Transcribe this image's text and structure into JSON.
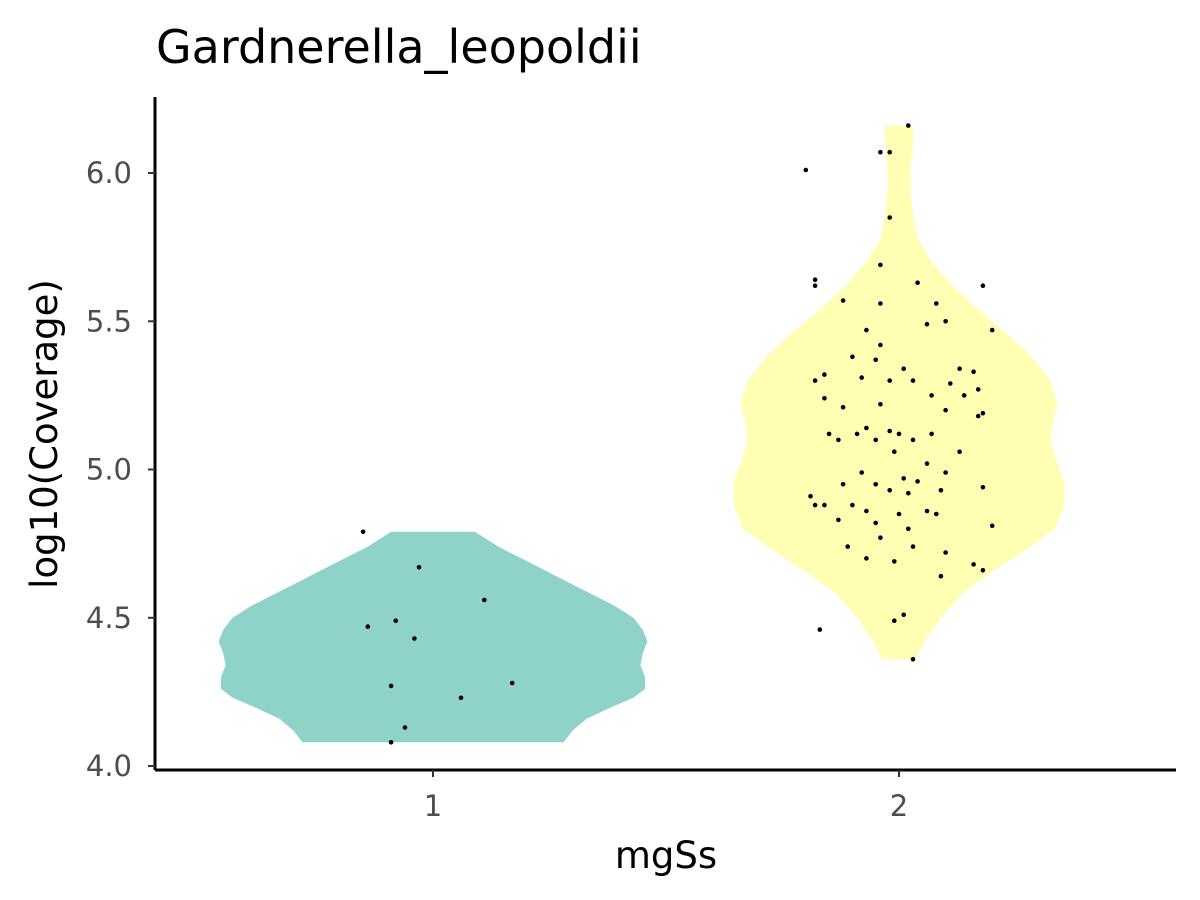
{
  "chart_data": {
    "type": "violin",
    "title": "Gardnerella_leopoldii",
    "xlabel": "mgSs",
    "ylabel": "log10(Coverage)",
    "categories": [
      "1",
      "2"
    ],
    "ylim": [
      3.99,
      6.25
    ],
    "y_ticks": [
      "4.0",
      "4.5",
      "5.0",
      "5.5",
      "6.0"
    ],
    "y_tick_values": [
      4.0,
      4.5,
      5.0,
      5.5,
      6.0
    ],
    "grid": false,
    "legend": "none",
    "series": [
      {
        "group": "1",
        "color": "#8fd3c8",
        "density": [
          [
            4.08,
            0.56
          ],
          [
            4.12,
            0.6
          ],
          [
            4.16,
            0.66
          ],
          [
            4.2,
            0.77
          ],
          [
            4.23,
            0.86
          ],
          [
            4.26,
            0.91
          ],
          [
            4.3,
            0.91
          ],
          [
            4.34,
            0.89
          ],
          [
            4.38,
            0.9
          ],
          [
            4.42,
            0.92
          ],
          [
            4.46,
            0.9
          ],
          [
            4.5,
            0.86
          ],
          [
            4.54,
            0.78
          ],
          [
            4.58,
            0.68
          ],
          [
            4.62,
            0.58
          ],
          [
            4.66,
            0.48
          ],
          [
            4.7,
            0.38
          ],
          [
            4.74,
            0.28
          ],
          [
            4.78,
            0.2
          ],
          [
            4.79,
            0.18
          ]
        ],
        "points": [
          [
            0.85,
            4.79
          ],
          [
            0.97,
            4.67
          ],
          [
            1.11,
            4.56
          ],
          [
            0.86,
            4.47
          ],
          [
            0.92,
            4.49
          ],
          [
            0.96,
            4.43
          ],
          [
            0.91,
            4.27
          ],
          [
            1.17,
            4.28
          ],
          [
            1.06,
            4.23
          ],
          [
            0.94,
            4.13
          ],
          [
            0.91,
            4.08
          ]
        ]
      },
      {
        "group": "2",
        "color": "#ffffb3",
        "density": [
          [
            4.36,
            0.07
          ],
          [
            4.42,
            0.11
          ],
          [
            4.5,
            0.18
          ],
          [
            4.58,
            0.27
          ],
          [
            4.65,
            0.39
          ],
          [
            4.72,
            0.53
          ],
          [
            4.8,
            0.67
          ],
          [
            4.88,
            0.71
          ],
          [
            4.96,
            0.71
          ],
          [
            5.04,
            0.67
          ],
          [
            5.1,
            0.65
          ],
          [
            5.16,
            0.66
          ],
          [
            5.22,
            0.68
          ],
          [
            5.3,
            0.65
          ],
          [
            5.38,
            0.57
          ],
          [
            5.46,
            0.46
          ],
          [
            5.54,
            0.34
          ],
          [
            5.62,
            0.23
          ],
          [
            5.7,
            0.14
          ],
          [
            5.78,
            0.08
          ],
          [
            5.86,
            0.06
          ],
          [
            5.94,
            0.05
          ],
          [
            6.02,
            0.05
          ],
          [
            6.1,
            0.06
          ],
          [
            6.16,
            0.06
          ]
        ],
        "points": [
          [
            2.02,
            6.16
          ],
          [
            1.96,
            6.07
          ],
          [
            1.98,
            6.07
          ],
          [
            1.8,
            6.01
          ],
          [
            1.98,
            5.85
          ],
          [
            1.82,
            5.64
          ],
          [
            1.82,
            5.62
          ],
          [
            2.18,
            5.62
          ],
          [
            1.96,
            5.69
          ],
          [
            2.04,
            5.63
          ],
          [
            1.88,
            5.57
          ],
          [
            1.96,
            5.56
          ],
          [
            2.08,
            5.56
          ],
          [
            1.93,
            5.47
          ],
          [
            2.06,
            5.49
          ],
          [
            2.1,
            5.5
          ],
          [
            2.2,
            5.47
          ],
          [
            1.96,
            5.42
          ],
          [
            1.9,
            5.38
          ],
          [
            1.95,
            5.37
          ],
          [
            2.01,
            5.34
          ],
          [
            2.13,
            5.34
          ],
          [
            2.16,
            5.33
          ],
          [
            1.82,
            5.3
          ],
          [
            1.84,
            5.32
          ],
          [
            1.92,
            5.31
          ],
          [
            1.98,
            5.3
          ],
          [
            2.03,
            5.3
          ],
          [
            2.11,
            5.29
          ],
          [
            2.17,
            5.27
          ],
          [
            2.14,
            5.25
          ],
          [
            2.1,
            5.2
          ],
          [
            2.17,
            5.18
          ],
          [
            2.18,
            5.19
          ],
          [
            1.88,
            5.21
          ],
          [
            1.96,
            5.22
          ],
          [
            1.84,
            5.24
          ],
          [
            2.07,
            5.25
          ],
          [
            1.85,
            5.12
          ],
          [
            1.91,
            5.12
          ],
          [
            1.95,
            5.1
          ],
          [
            1.98,
            5.13
          ],
          [
            2.0,
            5.12
          ],
          [
            2.03,
            5.1
          ],
          [
            2.07,
            5.12
          ],
          [
            1.87,
            5.1
          ],
          [
            1.93,
            5.14
          ],
          [
            1.99,
            5.06
          ],
          [
            2.13,
            5.06
          ],
          [
            2.06,
            5.02
          ],
          [
            1.92,
            4.99
          ],
          [
            2.01,
            4.97
          ],
          [
            2.1,
            4.99
          ],
          [
            1.88,
            4.95
          ],
          [
            1.95,
            4.95
          ],
          [
            1.98,
            4.93
          ],
          [
            2.04,
            4.96
          ],
          [
            1.81,
            4.91
          ],
          [
            1.84,
            4.88
          ],
          [
            1.9,
            4.88
          ],
          [
            2.02,
            4.92
          ],
          [
            2.09,
            4.93
          ],
          [
            2.18,
            4.94
          ],
          [
            1.82,
            4.88
          ],
          [
            1.93,
            4.86
          ],
          [
            2.0,
            4.85
          ],
          [
            2.08,
            4.85
          ],
          [
            1.87,
            4.83
          ],
          [
            1.95,
            4.82
          ],
          [
            2.02,
            4.8
          ],
          [
            2.06,
            4.86
          ],
          [
            2.2,
            4.81
          ],
          [
            1.89,
            4.74
          ],
          [
            1.96,
            4.77
          ],
          [
            2.03,
            4.74
          ],
          [
            2.1,
            4.72
          ],
          [
            1.93,
            4.7
          ],
          [
            1.99,
            4.69
          ],
          [
            2.16,
            4.68
          ],
          [
            2.18,
            4.66
          ],
          [
            2.09,
            4.64
          ],
          [
            2.01,
            4.51
          ],
          [
            1.99,
            4.49
          ],
          [
            1.83,
            4.46
          ],
          [
            2.03,
            4.36
          ]
        ]
      }
    ]
  }
}
